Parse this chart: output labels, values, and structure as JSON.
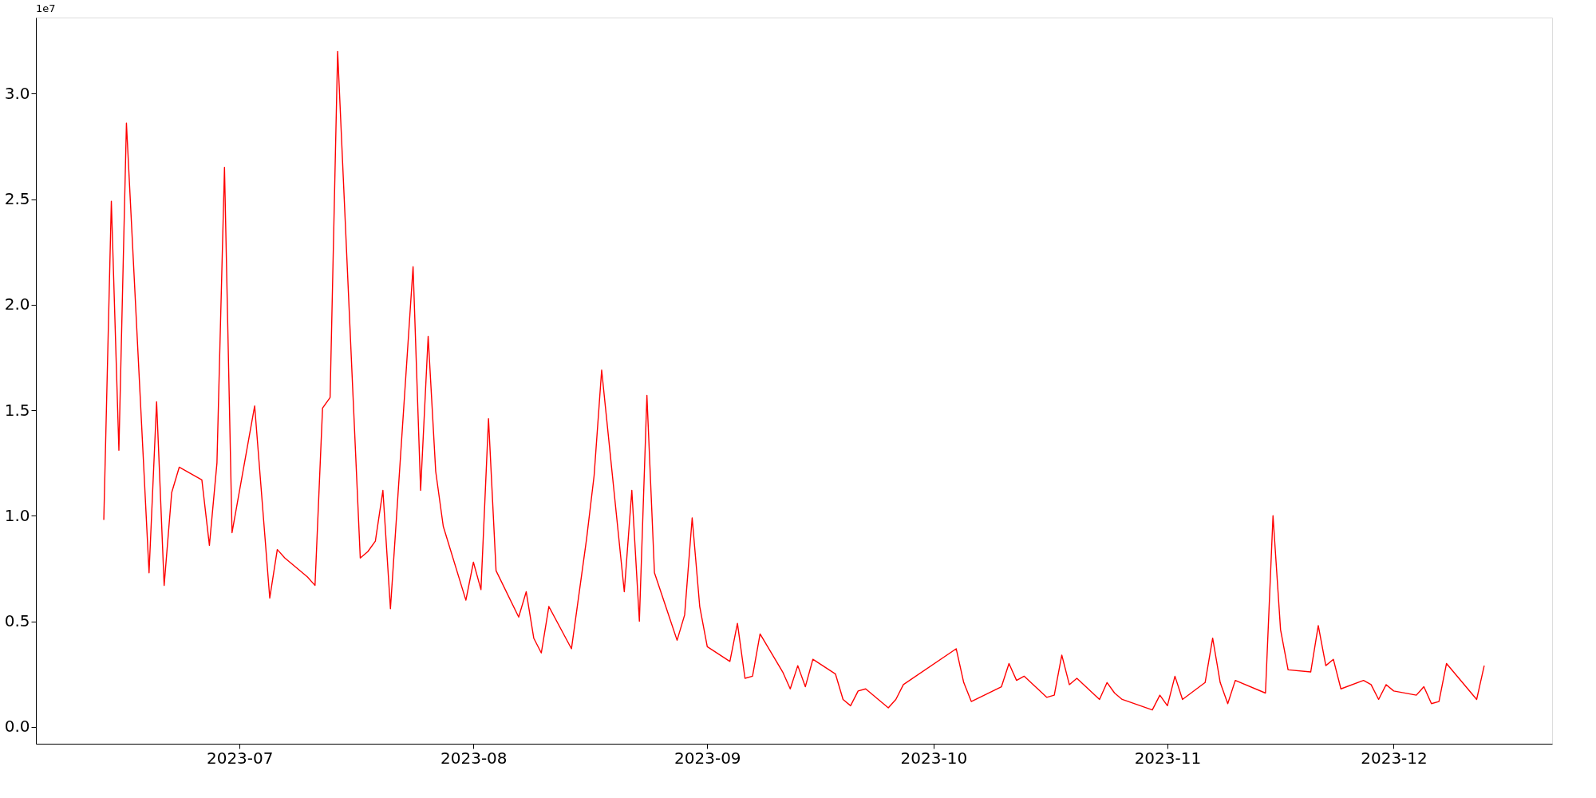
{
  "chart_data": {
    "type": "line",
    "x": [
      "2023-06-13",
      "2023-06-14",
      "2023-06-15",
      "2023-06-16",
      "2023-06-19",
      "2023-06-20",
      "2023-06-21",
      "2023-06-22",
      "2023-06-23",
      "2023-06-26",
      "2023-06-27",
      "2023-06-28",
      "2023-06-29",
      "2023-06-30",
      "2023-07-03",
      "2023-07-05",
      "2023-07-06",
      "2023-07-07",
      "2023-07-10",
      "2023-07-11",
      "2023-07-12",
      "2023-07-13",
      "2023-07-14",
      "2023-07-17",
      "2023-07-18",
      "2023-07-19",
      "2023-07-20",
      "2023-07-21",
      "2023-07-24",
      "2023-07-25",
      "2023-07-26",
      "2023-07-27",
      "2023-07-28",
      "2023-07-31",
      "2023-08-01",
      "2023-08-02",
      "2023-08-03",
      "2023-08-04",
      "2023-08-07",
      "2023-08-08",
      "2023-08-09",
      "2023-08-10",
      "2023-08-11",
      "2023-08-14",
      "2023-08-16",
      "2023-08-17",
      "2023-08-18",
      "2023-08-21",
      "2023-08-22",
      "2023-08-23",
      "2023-08-24",
      "2023-08-25",
      "2023-08-28",
      "2023-08-29",
      "2023-08-30",
      "2023-08-31",
      "2023-09-01",
      "2023-09-04",
      "2023-09-05",
      "2023-09-06",
      "2023-09-07",
      "2023-09-08",
      "2023-09-11",
      "2023-09-12",
      "2023-09-13",
      "2023-09-14",
      "2023-09-15",
      "2023-09-18",
      "2023-09-19",
      "2023-09-20",
      "2023-09-21",
      "2023-09-22",
      "2023-09-25",
      "2023-09-26",
      "2023-09-27",
      "2023-10-04",
      "2023-10-05",
      "2023-10-06",
      "2023-10-10",
      "2023-10-11",
      "2023-10-12",
      "2023-10-13",
      "2023-10-16",
      "2023-10-17",
      "2023-10-18",
      "2023-10-19",
      "2023-10-20",
      "2023-10-23",
      "2023-10-24",
      "2023-10-25",
      "2023-10-26",
      "2023-10-30",
      "2023-10-31",
      "2023-11-01",
      "2023-11-02",
      "2023-11-03",
      "2023-11-06",
      "2023-11-07",
      "2023-11-08",
      "2023-11-09",
      "2023-11-10",
      "2023-11-14",
      "2023-11-15",
      "2023-11-16",
      "2023-11-17",
      "2023-11-20",
      "2023-11-21",
      "2023-11-22",
      "2023-11-23",
      "2023-11-24",
      "2023-11-27",
      "2023-11-28",
      "2023-11-29",
      "2023-11-30",
      "2023-12-01",
      "2023-12-04",
      "2023-12-05",
      "2023-12-06",
      "2023-12-07",
      "2023-12-08",
      "2023-12-12",
      "2023-12-13"
    ],
    "series": [
      {
        "color": "#ff0000",
        "values": [
          0.98,
          2.49,
          1.31,
          2.86,
          0.73,
          1.54,
          0.67,
          1.11,
          1.23,
          1.17,
          0.86,
          1.25,
          2.65,
          0.92,
          1.52,
          0.61,
          0.84,
          0.8,
          0.71,
          0.67,
          1.51,
          1.56,
          3.2,
          0.8,
          0.83,
          0.88,
          1.12,
          0.56,
          2.18,
          1.12,
          1.85,
          1.21,
          0.95,
          0.6,
          0.78,
          0.65,
          1.46,
          0.74,
          0.52,
          0.64,
          0.42,
          0.35,
          0.57,
          0.37,
          0.89,
          1.19,
          1.69,
          0.64,
          1.12,
          0.5,
          1.57,
          0.73,
          0.41,
          0.53,
          0.99,
          0.57,
          0.38,
          0.31,
          0.49,
          0.23,
          0.24,
          0.44,
          0.26,
          0.18,
          0.29,
          0.19,
          0.32,
          0.25,
          0.13,
          0.1,
          0.17,
          0.18,
          0.09,
          0.13,
          0.2,
          0.37,
          0.21,
          0.12,
          0.19,
          0.3,
          0.22,
          0.24,
          0.14,
          0.15,
          0.34,
          0.2,
          0.23,
          0.13,
          0.21,
          0.16,
          0.13,
          0.08,
          0.15,
          0.1,
          0.24,
          0.13,
          0.21,
          0.42,
          0.21,
          0.11,
          0.22,
          0.16,
          1.0,
          0.46,
          0.27,
          0.26,
          0.48,
          0.29,
          0.32,
          0.18,
          0.22,
          0.2,
          0.13,
          0.2,
          0.17,
          0.15,
          0.19,
          0.11,
          0.12,
          0.3,
          0.13,
          0.29
        ]
      }
    ],
    "xlim": [
      "2023-06-04",
      "2023-12-22"
    ],
    "xticks": [
      {
        "value": "2023-07-01",
        "label": "2023-07"
      },
      {
        "value": "2023-08-01",
        "label": "2023-08"
      },
      {
        "value": "2023-09-01",
        "label": "2023-09"
      },
      {
        "value": "2023-10-01",
        "label": "2023-10"
      },
      {
        "value": "2023-11-01",
        "label": "2023-11"
      },
      {
        "value": "2023-12-01",
        "label": "2023-12"
      }
    ],
    "ylim": [
      -0.08,
      3.36
    ],
    "yticks": [
      {
        "value": 0,
        "label": "0.0"
      },
      {
        "value": 0.5,
        "label": "0.5"
      },
      {
        "value": 1,
        "label": "1.0"
      },
      {
        "value": 1.5,
        "label": "1.5"
      },
      {
        "value": 2,
        "label": "2.0"
      },
      {
        "value": 2.5,
        "label": "2.5"
      },
      {
        "value": 3,
        "label": "3.0"
      }
    ],
    "annotations": [
      "1e7"
    ],
    "grid": false,
    "legend": false,
    "marker": "none",
    "line_style": "solid"
  }
}
